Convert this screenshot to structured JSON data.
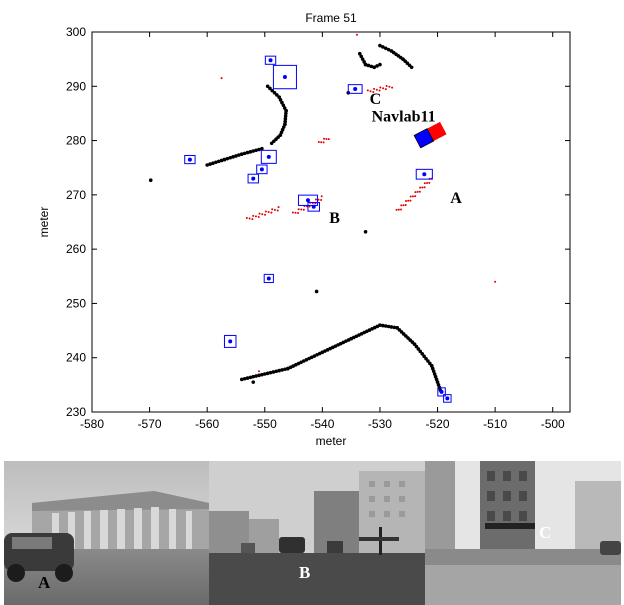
{
  "chart_data": {
    "type": "scatter",
    "title": "Frame 51",
    "xlabel": "meter",
    "ylabel": "meter",
    "xlim": [
      -580,
      -497
    ],
    "ylim": [
      230,
      300
    ],
    "xticks": [
      -580,
      -570,
      -560,
      -550,
      -540,
      -530,
      -520,
      -510,
      -500
    ],
    "yticks": [
      230,
      240,
      250,
      260,
      270,
      280,
      290,
      300
    ],
    "grid": false,
    "series": [
      {
        "kind": "curb-points",
        "color": "#000000",
        "polylines": [
          [
            [
              -549.5,
              290
            ],
            [
              -547.5,
              288
            ],
            [
              -546.3,
              285.5
            ],
            [
              -546.5,
              283
            ],
            [
              -547.3,
              281
            ],
            [
              -548.8,
              279.5
            ]
          ],
          [
            [
              -533.5,
              296
            ],
            [
              -532.5,
              294
            ],
            [
              -531,
              293.5
            ],
            [
              -530,
              294
            ]
          ],
          [
            [
              -530,
              297.5
            ],
            [
              -528,
              296.5
            ],
            [
              -526,
              295
            ],
            [
              -524.5,
              293.5
            ]
          ],
          [
            [
              -550.5,
              278.5
            ],
            [
              -554,
              277.5
            ],
            [
              -557,
              276.5
            ],
            [
              -560,
              275.5
            ]
          ],
          [
            [
              -554,
              236
            ],
            [
              -546,
              238
            ],
            [
              -540,
              241
            ],
            [
              -535,
              243.5
            ],
            [
              -530,
              246
            ],
            [
              -527,
              245.5
            ],
            [
              -524,
              242.5
            ],
            [
              -521,
              238.5
            ],
            [
              -519.5,
              234
            ]
          ]
        ],
        "points": [
          [
            -569.8,
            272.7
          ],
          [
            -532.5,
            263.2
          ],
          [
            -541,
            252.2
          ],
          [
            -535.5,
            288.8
          ],
          [
            -552,
            235.5
          ]
        ]
      },
      {
        "kind": "moving-points",
        "color": "#e00000",
        "polylines": [
          [
            [
              -553,
              265.5
            ],
            [
              -547.5,
              267.5
            ]
          ],
          [
            [
              -545,
              266.5
            ],
            [
              -540,
              269.5
            ]
          ],
          [
            [
              -527,
              267
            ],
            [
              -521,
              273
            ]
          ],
          [
            [
              -532,
              289
            ],
            [
              -528,
              290
            ]
          ],
          [
            [
              -540.5,
              279.5
            ],
            [
              -539,
              280.5
            ]
          ]
        ],
        "points": [
          [
            -551,
            237.5
          ],
          [
            -510,
            254
          ],
          [
            -534,
            299.5
          ],
          [
            -557.5,
            291.5
          ]
        ]
      },
      {
        "kind": "tracked-objects",
        "color": "#0000ff",
        "objects": [
          {
            "x": -549,
            "y": 294.8,
            "w": 1.8,
            "h": 1.5
          },
          {
            "x": -546.5,
            "y": 291.7,
            "w": 4,
            "h": 4.3
          },
          {
            "x": -534.3,
            "y": 289.5,
            "w": 2.4,
            "h": 1.6
          },
          {
            "x": -563,
            "y": 276.5,
            "w": 1.8,
            "h": 1.5
          },
          {
            "x": -549.3,
            "y": 277,
            "w": 2.6,
            "h": 2.4
          },
          {
            "x": -550.5,
            "y": 274.7,
            "w": 1.8,
            "h": 1.6
          },
          {
            "x": -552,
            "y": 273,
            "w": 1.8,
            "h": 1.6
          },
          {
            "x": -542.5,
            "y": 269,
            "w": 3.3,
            "h": 1.9
          },
          {
            "x": -541.5,
            "y": 267.8,
            "w": 2,
            "h": 1.6
          },
          {
            "x": -522.3,
            "y": 273.8,
            "w": 2.8,
            "h": 1.8
          },
          {
            "x": -549.3,
            "y": 254.6,
            "w": 1.6,
            "h": 1.5
          },
          {
            "x": -556,
            "y": 243,
            "w": 2,
            "h": 2.2
          },
          {
            "x": -519.3,
            "y": 233.7,
            "w": 1.3,
            "h": 1.5
          },
          {
            "x": -518.3,
            "y": 232.5,
            "w": 1.3,
            "h": 1.4
          }
        ]
      }
    ],
    "ego_vehicle": {
      "label": "Navlab11",
      "rear": [
        -523.5,
        279.8
      ],
      "front": [
        -519,
        282.3
      ],
      "heading_deg": 28,
      "color": "#0000ff",
      "trail_color": "#ff0000"
    },
    "annotations": [
      {
        "text": "A",
        "x": -517.8,
        "y": 268.5
      },
      {
        "text": "B",
        "x": -538.8,
        "y": 264.8
      },
      {
        "text": "C",
        "x": -531.8,
        "y": 286.7
      },
      {
        "text": "Navlab11",
        "x": -524.5,
        "y": 283.5
      }
    ]
  },
  "photos": [
    {
      "label": "A",
      "scene": "Columned stone building with a dark car on the left"
    },
    {
      "label": "B",
      "scene": "Street with vehicles and buildings"
    },
    {
      "label": "C",
      "scene": "Street with tall buildings and a crossing vehicle"
    }
  ],
  "colors": {
    "curb": "#000000",
    "moving": "#e00000",
    "track": "#0000ff",
    "ego": "#0000ff"
  }
}
